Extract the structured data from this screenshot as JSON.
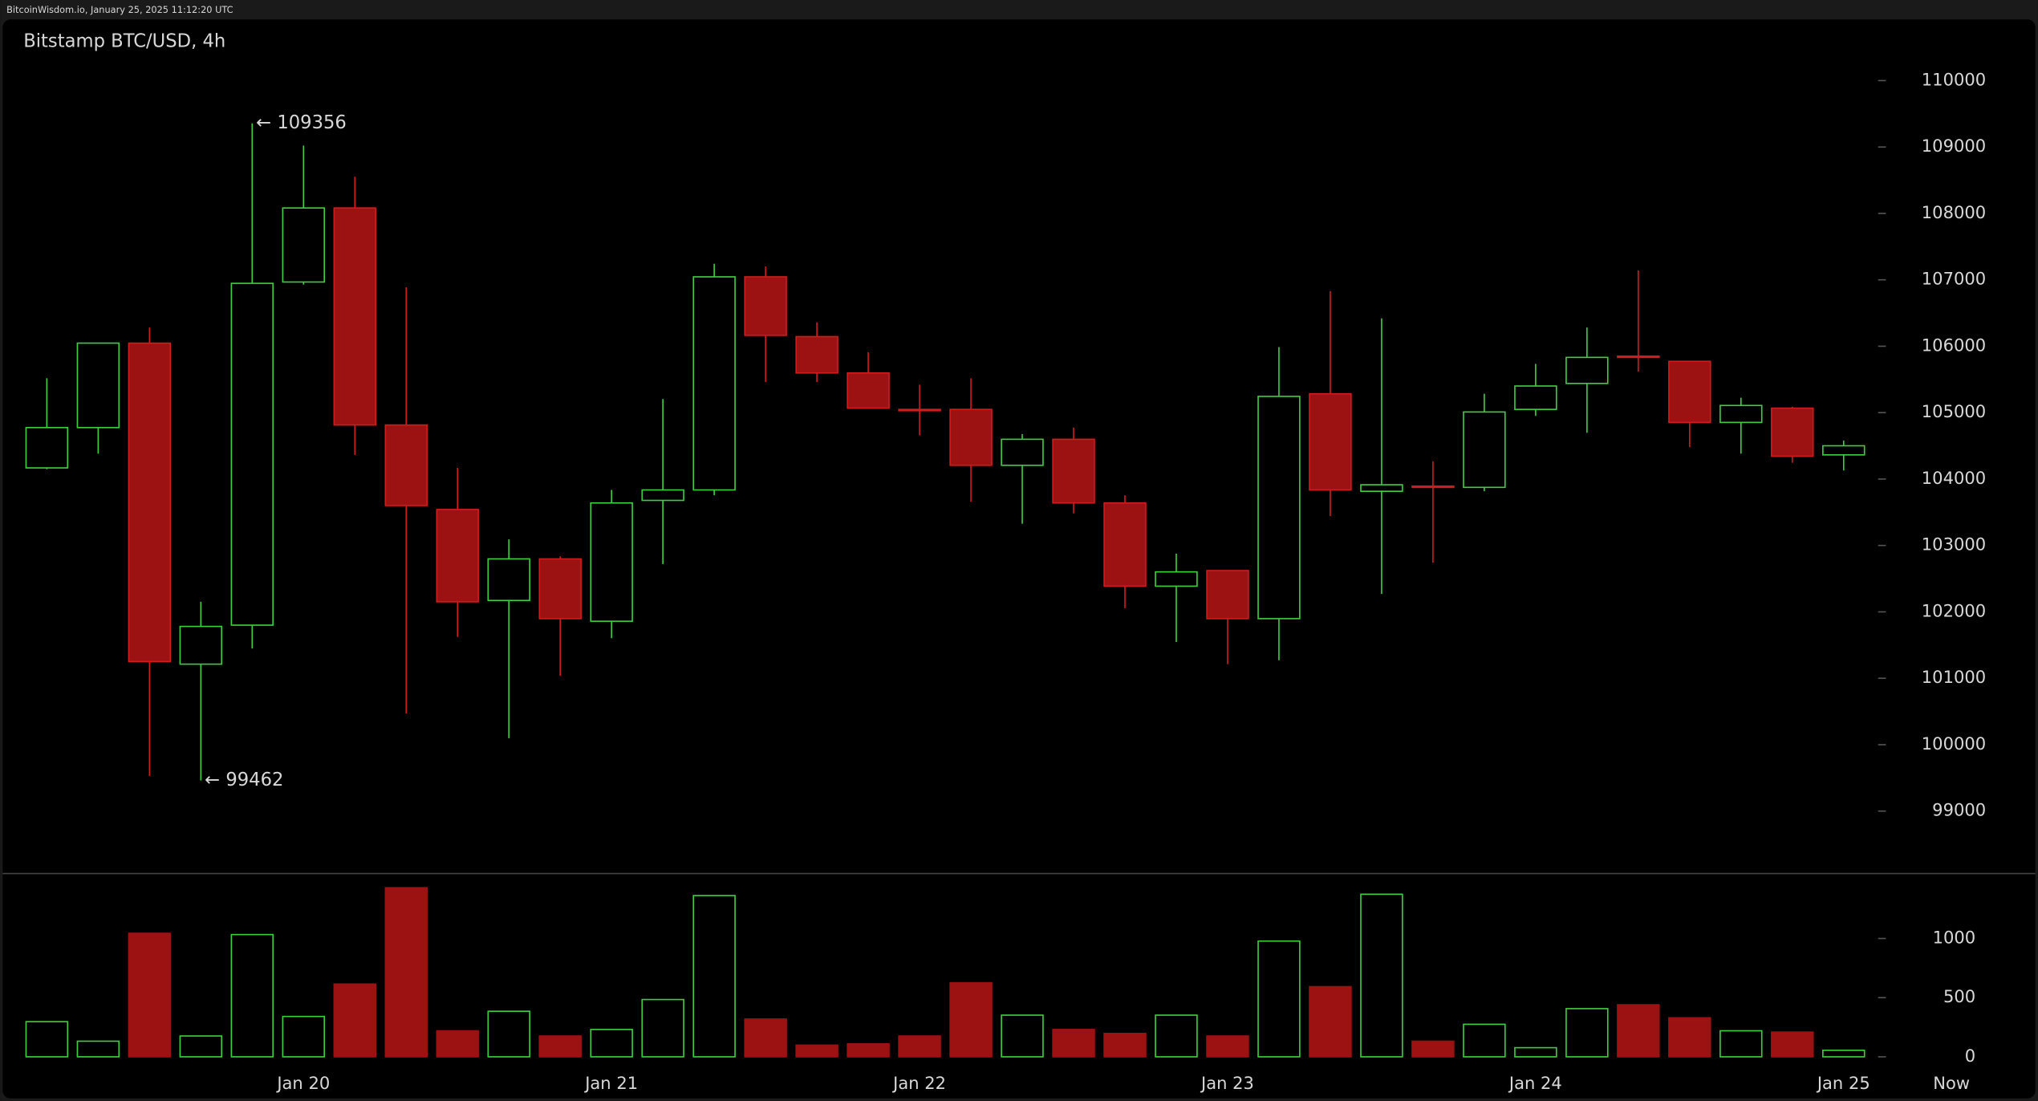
{
  "header": "BitcoinWisdom.io, January 25, 2025 11:12:20 UTC",
  "chart_data": [
    {
      "type": "candlestick",
      "title": "Bitstamp BTC/USD, 4h",
      "categories": [
        null,
        null,
        null,
        null,
        null,
        "Jan 20",
        null,
        null,
        null,
        null,
        null,
        "Jan 21",
        null,
        null,
        null,
        null,
        null,
        "Jan 22",
        null,
        null,
        null,
        null,
        null,
        "Jan 23",
        null,
        null,
        null,
        null,
        null,
        "Jan 24",
        null,
        null,
        null,
        null,
        null,
        "Jan 25"
      ],
      "end_label": "Now",
      "open": [
        104168,
        104775,
        106047,
        101213,
        101800,
        106967,
        108082,
        104814,
        103542,
        102172,
        102798,
        101859,
        103679,
        103836,
        107045,
        106145,
        105597,
        105049,
        105049,
        104207,
        104599,
        103640,
        102387,
        102622,
        101898,
        105284,
        103816,
        103894,
        103875,
        105049,
        105440,
        105851,
        105773,
        104853,
        105068,
        104364
      ],
      "high": [
        105518,
        106047,
        106282,
        102152,
        109356,
        109022,
        108552,
        106888,
        104168,
        103092,
        102837,
        103836,
        105205,
        107241,
        107202,
        106360,
        105910,
        105421,
        105518,
        104677,
        104775,
        103757,
        102877,
        102622,
        105988,
        106830,
        106419,
        104266,
        105284,
        105734,
        106282,
        107143,
        105773,
        105225,
        105088,
        104579
      ],
      "low": [
        104148,
        104383,
        99530,
        99462,
        101448,
        106928,
        104364,
        100470,
        101624,
        100098,
        101037,
        101604,
        102720,
        103757,
        105460,
        105460,
        105068,
        104657,
        103659,
        103327,
        103483,
        102055,
        101546,
        101213,
        101272,
        103444,
        102270,
        102740,
        103816,
        104951,
        104697,
        105617,
        104481,
        104383,
        104246,
        104129
      ],
      "close": [
        104775,
        106047,
        101252,
        101781,
        106947,
        108082,
        104814,
        103601,
        102152,
        102798,
        101898,
        103640,
        103836,
        107045,
        106164,
        105597,
        105068,
        105030,
        104207,
        104599,
        103640,
        102387,
        102602,
        101898,
        105245,
        103836,
        103914,
        103875,
        105010,
        105401,
        105832,
        105832,
        104853,
        105108,
        104344,
        104501
      ],
      "up_color": "#3ecf3e",
      "down_color": "#9c1212",
      "down_wick_color": "#d01c1c",
      "high_annotation": "← 109356",
      "low_annotation": "← 99462",
      "ylim": [
        98060,
        110920
      ],
      "yticks": [
        99000,
        100000,
        101000,
        102000,
        103000,
        104000,
        105000,
        106000,
        107000,
        108000,
        109000,
        110000
      ]
    },
    {
      "type": "volume",
      "values": [
        297,
        132,
        1044,
        176,
        1033,
        341,
        615,
        1429,
        220,
        385,
        176,
        231,
        484,
        1363,
        319,
        99,
        110,
        176,
        626,
        352,
        231,
        198,
        352,
        176,
        978,
        593,
        1374,
        132,
        275,
        77,
        407,
        440,
        330,
        220,
        209,
        55
      ],
      "ylim": [
        0,
        1549
      ],
      "yticks": [
        0,
        500,
        1000
      ]
    }
  ]
}
